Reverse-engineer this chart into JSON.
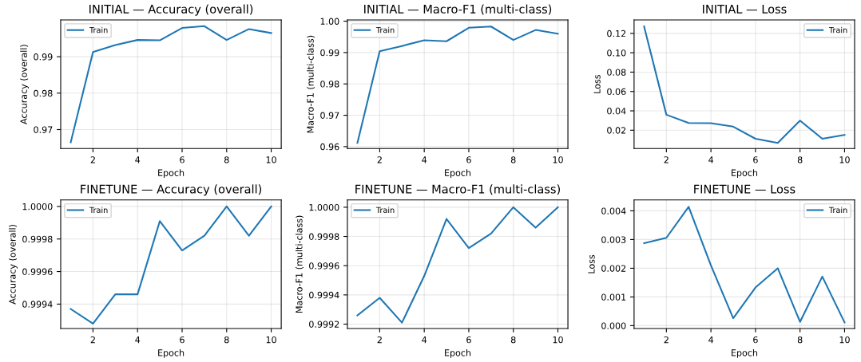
{
  "chart_data": [
    {
      "type": "line",
      "title": "INITIAL — Accuracy (overall)",
      "xlabel": "Epoch",
      "ylabel": "Accuracy (overall)",
      "x": [
        1,
        2,
        3,
        4,
        5,
        6,
        7,
        8,
        9,
        10
      ],
      "xlim": [
        0.55,
        10.45
      ],
      "xticks": [
        2,
        4,
        6,
        8,
        10
      ],
      "ylim": [
        0.9648,
        1.0001
      ],
      "yticks": [
        0.97,
        0.98,
        0.99
      ],
      "grid": true,
      "legend": "top left",
      "marker": "none",
      "series": [
        {
          "name": "Train",
          "color": "#1f77b4",
          "values": [
            0.9665,
            0.9913,
            0.9932,
            0.9946,
            0.9945,
            0.9979,
            0.9984,
            0.9946,
            0.9976,
            0.9965
          ]
        }
      ]
    },
    {
      "type": "line",
      "title": "INITIAL — Macro-F1 (multi-class)",
      "xlabel": "Epoch",
      "ylabel": "Macro-F1 (multi-class)",
      "x": [
        1,
        2,
        3,
        4,
        5,
        6,
        7,
        8,
        9,
        10
      ],
      "xlim": [
        0.55,
        10.45
      ],
      "xticks": [
        2,
        4,
        6,
        8,
        10
      ],
      "ylim": [
        0.9594,
        1.0004
      ],
      "yticks": [
        {
          "value": 0.96,
          "label": "0.96"
        },
        {
          "value": 0.97,
          "label": "0.97"
        },
        {
          "value": 0.98,
          "label": "0.98"
        },
        {
          "value": 0.99,
          "label": "0.99"
        },
        {
          "value": 1.0,
          "label": "1.00"
        }
      ],
      "grid": true,
      "legend": "top left",
      "marker": "none",
      "series": [
        {
          "name": "Train",
          "color": "#1f77b4",
          "values": [
            0.9612,
            0.9904,
            0.9921,
            0.9939,
            0.9936,
            0.9979,
            0.9983,
            0.994,
            0.9972,
            0.996
          ]
        }
      ]
    },
    {
      "type": "line",
      "title": "INITIAL — Loss",
      "xlabel": "Epoch",
      "ylabel": "Loss",
      "x": [
        1,
        2,
        3,
        4,
        5,
        6,
        7,
        8,
        9,
        10
      ],
      "xlim": [
        0.55,
        10.45
      ],
      "xticks": [
        2,
        4,
        6,
        8,
        10
      ],
      "ylim": [
        0.0011,
        0.1339
      ],
      "yticks": [
        0.02,
        0.04,
        0.06,
        0.08,
        {
          "value": 0.1,
          "label": "0.10"
        },
        0.12
      ],
      "grid": true,
      "legend": "top right",
      "marker": "none",
      "series": [
        {
          "name": "Train",
          "color": "#1f77b4",
          "values": [
            0.1272,
            0.036,
            0.0275,
            0.0273,
            0.0237,
            0.0112,
            0.0069,
            0.0299,
            0.0112,
            0.0152
          ]
        }
      ]
    },
    {
      "type": "line",
      "title": "FINETUNE — Accuracy (overall)",
      "xlabel": "Epoch",
      "ylabel": "Accuracy (overall)",
      "x": [
        1,
        2,
        3,
        4,
        5,
        6,
        7,
        8,
        9,
        10
      ],
      "xlim": [
        0.55,
        10.45
      ],
      "xticks": [
        2,
        4,
        6,
        8,
        10
      ],
      "ylim": [
        0.99925,
        1.00004
      ],
      "yticks": [
        0.9994,
        0.9996,
        0.9998,
        {
          "value": 1.0,
          "label": "1.0000"
        }
      ],
      "grid": true,
      "legend": "top left",
      "marker": "none",
      "series": [
        {
          "name": "Train",
          "color": "#1f77b4",
          "values": [
            0.99937,
            0.99928,
            0.99946,
            0.99946,
            0.99991,
            0.99973,
            0.99982,
            1.0,
            0.99982,
            1.0
          ]
        }
      ]
    },
    {
      "type": "line",
      "title": "FINETUNE — Macro-F1 (multi-class)",
      "xlabel": "Epoch",
      "ylabel": "Macro-F1 (multi-class)",
      "x": [
        1,
        2,
        3,
        4,
        5,
        6,
        7,
        8,
        9,
        10
      ],
      "xlim": [
        0.55,
        10.45
      ],
      "xticks": [
        2,
        4,
        6,
        8,
        10
      ],
      "ylim": [
        0.99917,
        1.00005
      ],
      "yticks": [
        0.9992,
        0.9994,
        0.9996,
        0.9998,
        {
          "value": 1.0,
          "label": "1.0000"
        }
      ],
      "grid": true,
      "legend": "top left",
      "marker": "none",
      "series": [
        {
          "name": "Train",
          "color": "#1f77b4",
          "values": [
            0.99926,
            0.99938,
            0.99921,
            0.99953,
            0.99992,
            0.99972,
            0.99982,
            1.0,
            0.99986,
            1.0
          ]
        }
      ]
    },
    {
      "type": "line",
      "title": "FINETUNE — Loss",
      "xlabel": "Epoch",
      "ylabel": "Loss",
      "x": [
        1,
        2,
        3,
        4,
        5,
        6,
        7,
        8,
        9,
        10
      ],
      "xlim": [
        0.55,
        10.45
      ],
      "xticks": [
        2,
        4,
        6,
        8,
        10
      ],
      "ylim": [
        -0.0001,
        0.00438
      ],
      "yticks": [
        {
          "value": 0,
          "label": "0.000"
        },
        0.001,
        0.002,
        0.003,
        0.004
      ],
      "grid": true,
      "legend": "top right",
      "marker": "none",
      "series": [
        {
          "name": "Train",
          "color": "#1f77b4",
          "values": [
            0.00287,
            0.00306,
            0.00414,
            0.0021,
            0.00026,
            0.00133,
            0.002,
            0.00013,
            0.00171,
            0.00011
          ]
        }
      ]
    }
  ]
}
